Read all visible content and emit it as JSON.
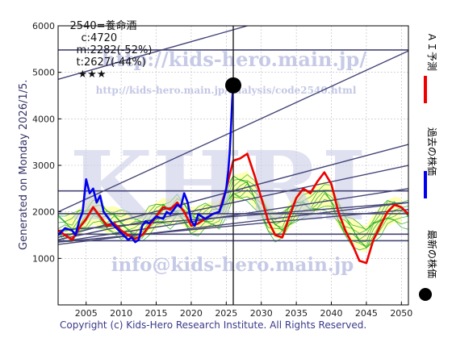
{
  "header": {
    "code_name": "2540=養命酒",
    "current": "c:4720",
    "max_text": "m:2282(-52%)",
    "target_text": "t:2627(-44%)",
    "stars": "★★★"
  },
  "generated_note": "Generated on Monday 2026/1/5.",
  "copyright": "Copyright (c) Kids-Hero Research Institute. All Rights Reserved.",
  "watermarks": {
    "url1": "http://kids-hero.main.jp/",
    "url2": "http://kids-hero.main.jp/analysis/code2540.html",
    "khri": "KHRI",
    "email": "info@kids-hero.main.jp"
  },
  "legend": {
    "ai": "ＡＩ予測",
    "past": "過去の株価",
    "latest": "最新の株価",
    "colors": {
      "ai": "#ee0000",
      "past": "#0000ee",
      "latest": "#000000"
    }
  },
  "chart_data": {
    "type": "line",
    "xlim": [
      2001,
      2051
    ],
    "ylim": [
      0,
      6000
    ],
    "x_ticks": [
      2005,
      2010,
      2015,
      2020,
      2025,
      2030,
      2035,
      2040,
      2045,
      2050
    ],
    "y_ticks": [
      1000,
      2000,
      3000,
      4000,
      5000,
      6000
    ],
    "grid": true,
    "current_marker": {
      "x": 2026.0,
      "y": 4720
    },
    "vertical_line_x": 2026.0,
    "horizontal_levels": [
      5480,
      2450,
      1960,
      1520,
      1380
    ],
    "trend_lines": [
      {
        "x": [
          2001,
          2028
        ],
        "y": [
          4850,
          6000
        ]
      },
      {
        "x": [
          2001,
          2051
        ],
        "y": [
          2000,
          5460
        ]
      },
      {
        "x": [
          2001,
          2051
        ],
        "y": [
          1450,
          3450
        ]
      },
      {
        "x": [
          2001,
          2051
        ],
        "y": [
          1400,
          3000
        ]
      },
      {
        "x": [
          2001,
          2051
        ],
        "y": [
          1350,
          2500
        ]
      },
      {
        "x": [
          2001,
          2051
        ],
        "y": [
          1300,
          2200
        ]
      },
      {
        "x": [
          2001,
          2051
        ],
        "y": [
          1600,
          2200
        ]
      },
      {
        "x": [
          2001,
          2051
        ],
        "y": [
          1350,
          2050
        ]
      }
    ],
    "series": [
      {
        "name": "過去の株価",
        "color": "#0000ee",
        "x": [
          2001.0,
          2002.0,
          2003.0,
          2003.5,
          2004.0,
          2004.5,
          2005.0,
          2005.5,
          2006.0,
          2006.5,
          2007.0,
          2007.5,
          2008.0,
          2009.0,
          2010.0,
          2011.0,
          2011.5,
          2012.0,
          2012.5,
          2013.0,
          2013.5,
          2014.0,
          2015.0,
          2016.0,
          2016.5,
          2017.0,
          2018.0,
          2018.5,
          2019.0,
          2019.5,
          2020.0,
          2020.5,
          2021.0,
          2022.0,
          2023.0,
          2024.0,
          2024.5,
          2025.0,
          2025.3,
          2025.5,
          2025.7,
          2025.85,
          2026.0
        ],
        "y": [
          1500,
          1650,
          1600,
          1500,
          1800,
          2000,
          2700,
          2400,
          2500,
          2200,
          2350,
          2000,
          1900,
          1700,
          1550,
          1400,
          1450,
          1350,
          1400,
          1700,
          1800,
          1750,
          1900,
          1850,
          2000,
          1950,
          2150,
          2100,
          2400,
          2200,
          1800,
          1700,
          1950,
          1850,
          1950,
          2000,
          2200,
          2500,
          2900,
          3300,
          3900,
          4400,
          4720
        ]
      },
      {
        "name": "ＡＩ予測",
        "color": "#ee0000",
        "x": [
          2001,
          2002,
          2003,
          2004,
          2005,
          2006,
          2007,
          2008,
          2009,
          2010,
          2011,
          2012,
          2013,
          2014,
          2015,
          2016,
          2017,
          2018,
          2019,
          2020,
          2021,
          2022,
          2023,
          2024,
          2025,
          2026,
          2027,
          2028,
          2029,
          2030,
          2031,
          2032,
          2033,
          2034,
          2035,
          2036,
          2037,
          2038,
          2039,
          2040,
          2041,
          2042,
          2043,
          2044,
          2045,
          2046,
          2047,
          2048,
          2049,
          2050,
          2051
        ],
        "y": [
          1600,
          1500,
          1400,
          1650,
          1850,
          2100,
          1900,
          1700,
          1750,
          1600,
          1500,
          1420,
          1500,
          1700,
          1900,
          2100,
          2050,
          2200,
          2000,
          1700,
          1750,
          1850,
          1950,
          2000,
          2500,
          3100,
          3150,
          3250,
          2800,
          2300,
          1800,
          1500,
          1450,
          1900,
          2300,
          2500,
          2400,
          2650,
          2850,
          2600,
          2000,
          1600,
          1300,
          950,
          900,
          1400,
          1700,
          2000,
          2150,
          2100,
          1950
        ]
      }
    ]
  }
}
